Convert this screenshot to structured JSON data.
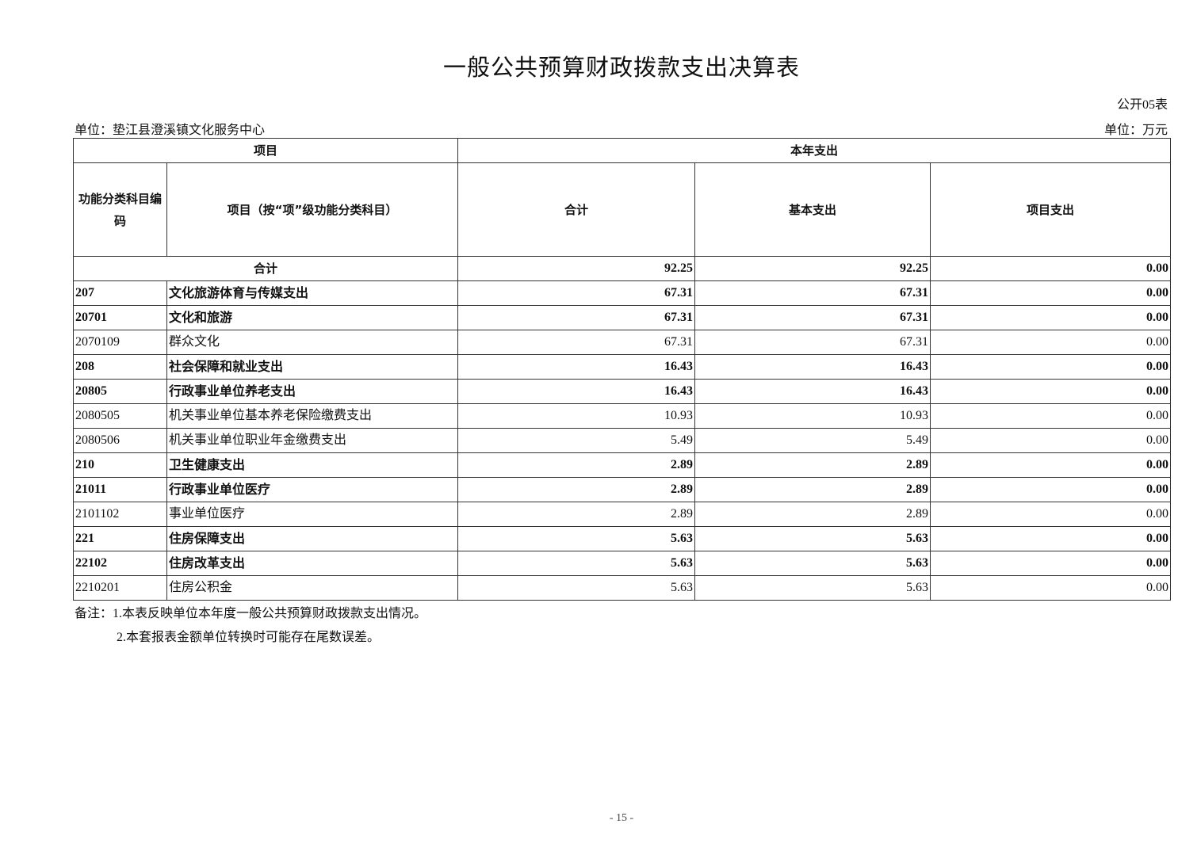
{
  "title": "一般公共预算财政拨款支出决算表",
  "table_no": "公开05表",
  "unit_org": "单位：垫江县澄溪镇文化服务中心",
  "unit_money": "单位：万元",
  "headers": {
    "project": "项目",
    "year_expense": "本年支出",
    "code": "功能分类科目编码",
    "item": "项目（按“项”级功能分类科目）",
    "total": "合计",
    "basic": "基本支出",
    "project_exp": "项目支出"
  },
  "total_row": {
    "label": "合计",
    "total": "92.25",
    "basic": "92.25",
    "project": "0.00"
  },
  "rows": [
    {
      "code": "207",
      "name": "文化旅游体育与传媒支出",
      "total": "67.31",
      "basic": "67.31",
      "project": "0.00",
      "bold": true
    },
    {
      "code": "20701",
      "name": "文化和旅游",
      "total": "67.31",
      "basic": "67.31",
      "project": "0.00",
      "bold": true
    },
    {
      "code": "2070109",
      "name": "群众文化",
      "total": "67.31",
      "basic": "67.31",
      "project": "0.00",
      "bold": false
    },
    {
      "code": "208",
      "name": "社会保障和就业支出",
      "total": "16.43",
      "basic": "16.43",
      "project": "0.00",
      "bold": true
    },
    {
      "code": "20805",
      "name": "行政事业单位养老支出",
      "total": "16.43",
      "basic": "16.43",
      "project": "0.00",
      "bold": true
    },
    {
      "code": "2080505",
      "name": "机关事业单位基本养老保险缴费支出",
      "total": "10.93",
      "basic": "10.93",
      "project": "0.00",
      "bold": false
    },
    {
      "code": "2080506",
      "name": "机关事业单位职业年金缴费支出",
      "total": "5.49",
      "basic": "5.49",
      "project": "0.00",
      "bold": false
    },
    {
      "code": "210",
      "name": "卫生健康支出",
      "total": "2.89",
      "basic": "2.89",
      "project": "0.00",
      "bold": true
    },
    {
      "code": "21011",
      "name": "行政事业单位医疗",
      "total": "2.89",
      "basic": "2.89",
      "project": "0.00",
      "bold": true
    },
    {
      "code": "2101102",
      "name": "事业单位医疗",
      "total": "2.89",
      "basic": "2.89",
      "project": "0.00",
      "bold": false
    },
    {
      "code": "221",
      "name": "住房保障支出",
      "total": "5.63",
      "basic": "5.63",
      "project": "0.00",
      "bold": true
    },
    {
      "code": "22102",
      "name": "住房改革支出",
      "total": "5.63",
      "basic": "5.63",
      "project": "0.00",
      "bold": true
    },
    {
      "code": "2210201",
      "name": "住房公积金",
      "total": "5.63",
      "basic": "5.63",
      "project": "0.00",
      "bold": false
    }
  ],
  "notes": [
    "备注：1.本表反映单位本年度一般公共预算财政拨款支出情况。",
    "2.本套报表金额单位转换时可能存在尾数误差。"
  ],
  "page_number": "- 15 -"
}
